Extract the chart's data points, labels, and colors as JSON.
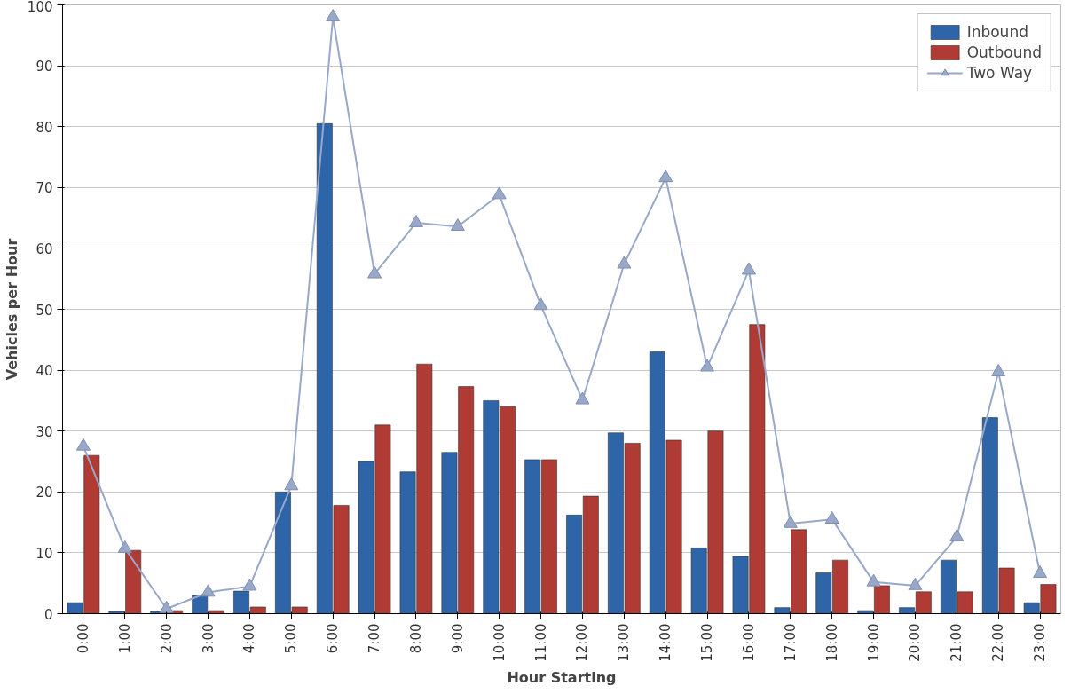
{
  "chart_data": {
    "type": "bar",
    "xlabel": "Hour Starting",
    "ylabel": "Vehicles per Hour",
    "categories": [
      "0:00",
      "1:00",
      "2:00",
      "3:00",
      "4:00",
      "5:00",
      "6:00",
      "7:00",
      "8:00",
      "9:00",
      "10:00",
      "11:00",
      "12:00",
      "13:00",
      "14:00",
      "15:00",
      "16:00",
      "17:00",
      "18:00",
      "19:00",
      "20:00",
      "21:00",
      "22:00",
      "23:00"
    ],
    "series": [
      {
        "name": "Inbound",
        "color": "#2e64a8",
        "values": [
          1.8,
          0.4,
          0.4,
          3,
          3.7,
          20,
          80.5,
          25,
          23.3,
          26.5,
          35,
          25.3,
          16.2,
          29.7,
          43,
          10.8,
          9.4,
          1,
          6.7,
          0.5,
          1,
          8.8,
          32.2,
          1.8
        ]
      },
      {
        "name": "Outbound",
        "color": "#b03a34",
        "values": [
          26,
          10.4,
          0.5,
          0.5,
          1.1,
          1.1,
          17.8,
          31,
          41,
          37.3,
          34,
          25.3,
          19.3,
          28,
          28.5,
          30,
          47.5,
          13.8,
          8.8,
          4.6,
          3.6,
          3.6,
          7.5,
          4.8
        ]
      },
      {
        "name": "Two Way",
        "type": "line",
        "color": "#98a8c8",
        "marker": "triangle",
        "values": [
          27.5,
          10.7,
          0.8,
          3.5,
          4.5,
          21,
          98,
          55.8,
          64.2,
          63.6,
          68.8,
          50.6,
          35.1,
          57.4,
          71.6,
          40.5,
          56.4,
          14.8,
          15.5,
          5.2,
          4.6,
          12.6,
          39.7,
          6.6
        ]
      }
    ],
    "ylim": [
      0,
      100
    ],
    "yticks": [
      0,
      10,
      20,
      30,
      40,
      50,
      60,
      70,
      80,
      90,
      100
    ],
    "grid": "y",
    "legend": "top right"
  }
}
